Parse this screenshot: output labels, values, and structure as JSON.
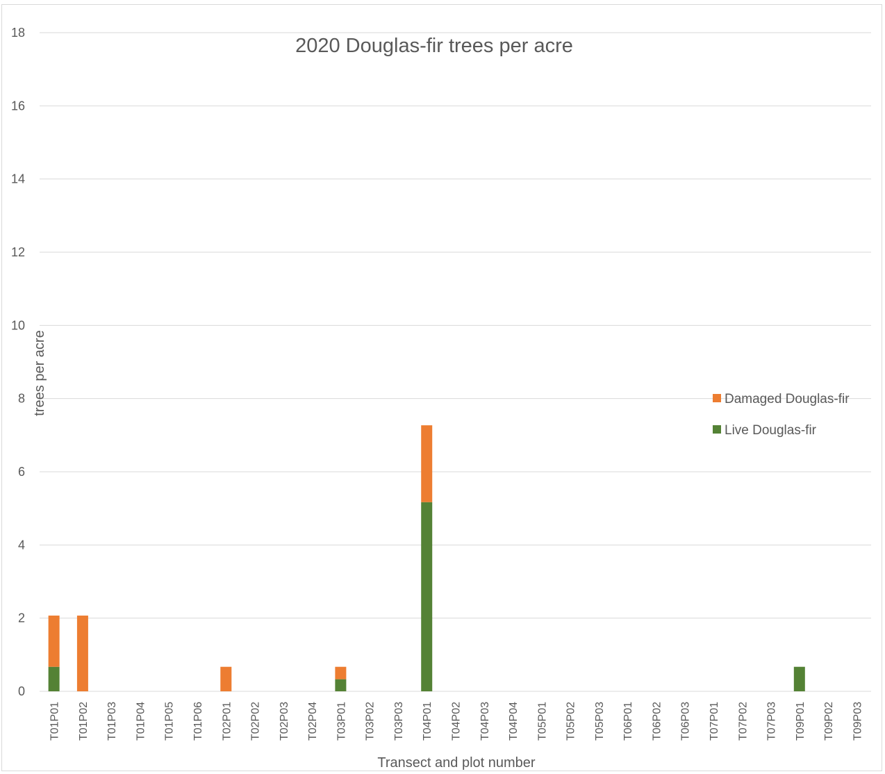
{
  "chart_data": {
    "type": "bar",
    "stacked": true,
    "title": "2020 Douglas-fir trees per acre",
    "xlabel": "Transect and plot number",
    "ylabel": "trees per acre",
    "ylim": [
      0,
      18
    ],
    "yticks": [
      0,
      2,
      4,
      6,
      8,
      10,
      12,
      14,
      16,
      18
    ],
    "grid": true,
    "legend_position": "right",
    "categories": [
      "T01P01",
      "T01P02",
      "T01P03",
      "T01P04",
      "T01P05",
      "T01P06",
      "T02P01",
      "T02P02",
      "T02P03",
      "T02P04",
      "T03P01",
      "T03P02",
      "T03P03",
      "T04P01",
      "T04P02",
      "T04P03",
      "T04P04",
      "T05P01",
      "T05P02",
      "T05P03",
      "T06P01",
      "T06P02",
      "T06P03",
      "T07P01",
      "T07P02",
      "T07P03",
      "T09P01",
      "T09P02",
      "T09P03"
    ],
    "series": [
      {
        "name": "Live Douglas-fir",
        "color": "#548235",
        "values": [
          0.67,
          0,
          0,
          0,
          0,
          0,
          0,
          0,
          0,
          0,
          0.33,
          0,
          0,
          5.17,
          0,
          0,
          0,
          0,
          0,
          0,
          0,
          0,
          0,
          0,
          0,
          0,
          0.67,
          0,
          0
        ]
      },
      {
        "name": "Damaged Douglas-fir",
        "color": "#ed7d31",
        "values": [
          1.4,
          2.07,
          0,
          0,
          0,
          0,
          0.67,
          0,
          0,
          0,
          0.34,
          0,
          0,
          2.1,
          0,
          0,
          0,
          0,
          0,
          0,
          0,
          0,
          0,
          0,
          0,
          0,
          0,
          0,
          0
        ]
      }
    ],
    "legend_order": [
      "Damaged Douglas-fir",
      "Live Douglas-fir"
    ]
  }
}
